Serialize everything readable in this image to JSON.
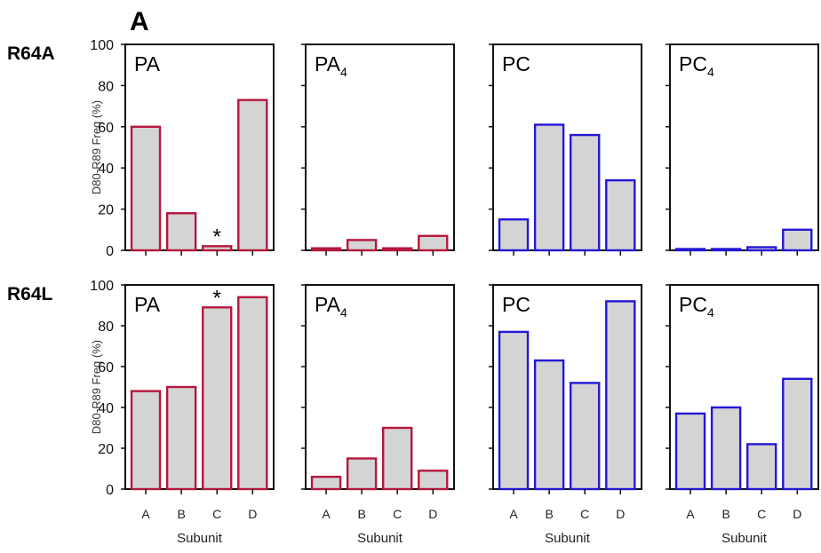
{
  "figure": {
    "panel_letter": "A",
    "row_labels": [
      "R64A",
      "R64L"
    ],
    "ylabel": "D80-R89 Freq (%)",
    "xlabel": "Subunit",
    "ytick_labels": [
      "0",
      "20",
      "40",
      "60",
      "80",
      "100"
    ]
  },
  "colors": {
    "red": "#b5173e",
    "blue": "#2318d6",
    "bar_fill": "#d4d4d4",
    "axis": "#111111"
  },
  "chart_data": [
    {
      "type": "bar",
      "title": "PA",
      "title_sub": "",
      "categories": [
        "A",
        "B",
        "C",
        "D"
      ],
      "values": [
        60,
        18,
        2,
        73
      ],
      "ylim": [
        0,
        100
      ],
      "color": "#b5173e",
      "annotation": "*",
      "annotation_index": 2
    },
    {
      "type": "bar",
      "title": "PA",
      "title_sub": "4",
      "categories": [
        "A",
        "B",
        "C",
        "D"
      ],
      "values": [
        1,
        5,
        1,
        7
      ],
      "ylim": [
        0,
        100
      ],
      "color": "#b5173e",
      "annotation": "",
      "annotation_index": -1
    },
    {
      "type": "bar",
      "title": "PC",
      "title_sub": "",
      "categories": [
        "A",
        "B",
        "C",
        "D"
      ],
      "values": [
        15,
        61,
        56,
        34
      ],
      "ylim": [
        0,
        100
      ],
      "color": "#2318d6",
      "annotation": "",
      "annotation_index": -1
    },
    {
      "type": "bar",
      "title": "PC",
      "title_sub": "4",
      "categories": [
        "A",
        "B",
        "C",
        "D"
      ],
      "values": [
        0.5,
        0.3,
        1.5,
        10
      ],
      "ylim": [
        0,
        100
      ],
      "color": "#2318d6",
      "annotation": "",
      "annotation_index": -1
    },
    {
      "type": "bar",
      "title": "PA",
      "title_sub": "",
      "categories": [
        "A",
        "B",
        "C",
        "D"
      ],
      "values": [
        48,
        50,
        89,
        94
      ],
      "ylim": [
        0,
        100
      ],
      "color": "#b5173e",
      "annotation": "*",
      "annotation_index": 2
    },
    {
      "type": "bar",
      "title": "PA",
      "title_sub": "4",
      "categories": [
        "A",
        "B",
        "C",
        "D"
      ],
      "values": [
        6,
        15,
        30,
        9
      ],
      "ylim": [
        0,
        100
      ],
      "color": "#b5173e",
      "annotation": "",
      "annotation_index": -1
    },
    {
      "type": "bar",
      "title": "PC",
      "title_sub": "",
      "categories": [
        "A",
        "B",
        "C",
        "D"
      ],
      "values": [
        77,
        63,
        52,
        92
      ],
      "ylim": [
        0,
        100
      ],
      "color": "#2318d6",
      "annotation": "",
      "annotation_index": -1
    },
    {
      "type": "bar",
      "title": "PC",
      "title_sub": "4",
      "categories": [
        "A",
        "B",
        "C",
        "D"
      ],
      "values": [
        37,
        40,
        22,
        54
      ],
      "ylim": [
        0,
        100
      ],
      "color": "#2318d6",
      "annotation": "",
      "annotation_index": -1
    }
  ]
}
